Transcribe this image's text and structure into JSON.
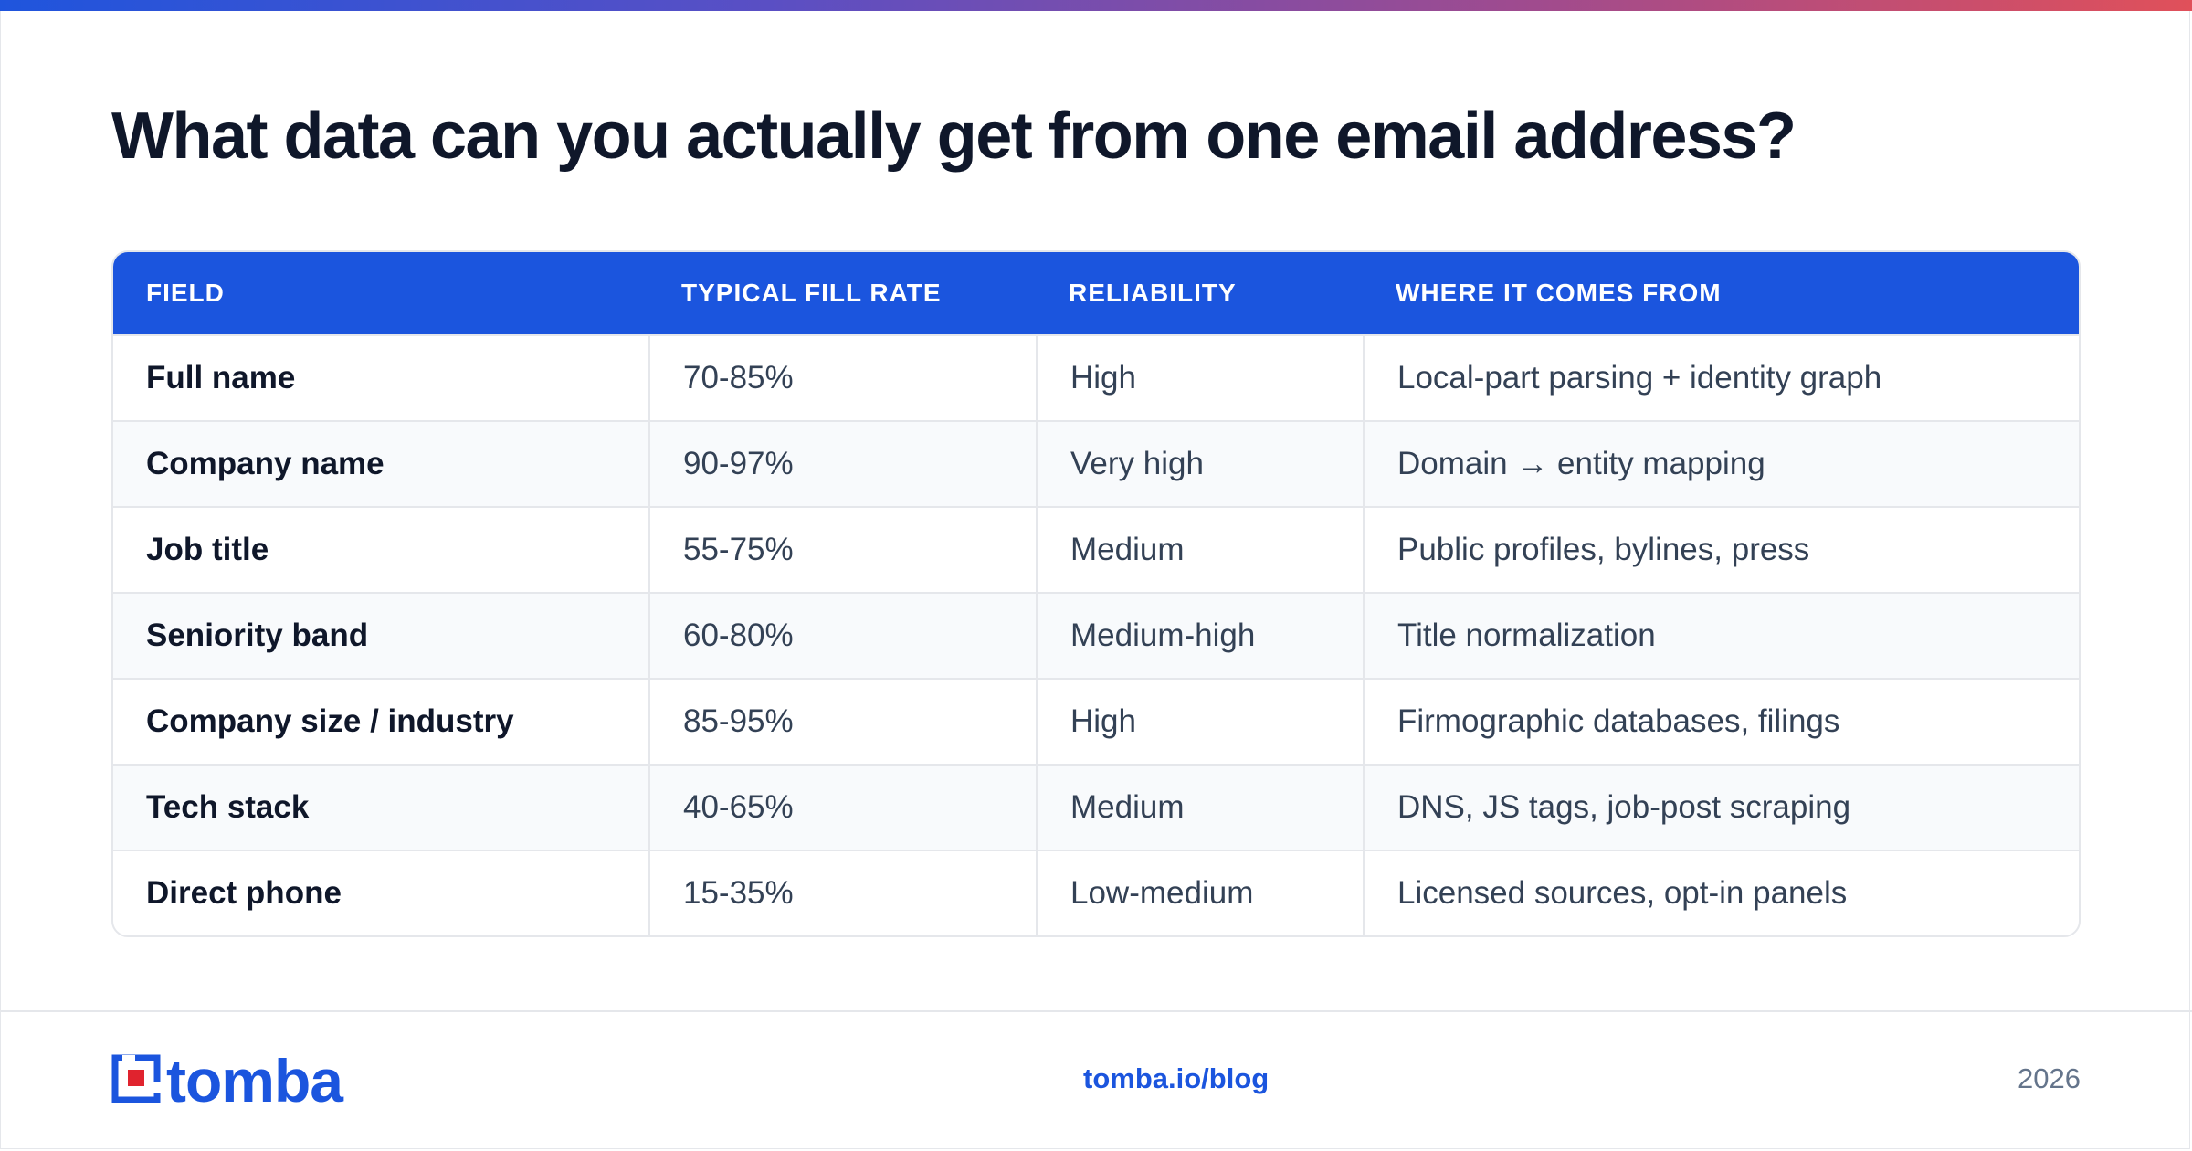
{
  "title": "What data can you actually get from one email address?",
  "table": {
    "headers": [
      "FIELD",
      "TYPICAL FILL RATE",
      "RELIABILITY",
      "WHERE IT COMES FROM"
    ],
    "rows": [
      {
        "field": "Full name",
        "fill_rate": "70-85%",
        "reliability": "High",
        "source": "Local-part parsing + identity graph"
      },
      {
        "field": "Company name",
        "fill_rate": "90-97%",
        "reliability": "Very high",
        "source": "Domain → entity mapping"
      },
      {
        "field": "Job title",
        "fill_rate": "55-75%",
        "reliability": "Medium",
        "source": "Public profiles, bylines, press"
      },
      {
        "field": "Seniority band",
        "fill_rate": "60-80%",
        "reliability": "Medium-high",
        "source": "Title normalization"
      },
      {
        "field": "Company size / industry",
        "fill_rate": "85-95%",
        "reliability": "High",
        "source": "Firmographic databases, filings"
      },
      {
        "field": "Tech stack",
        "fill_rate": "40-65%",
        "reliability": "Medium",
        "source": "DNS, JS tags, job-post scraping"
      },
      {
        "field": "Direct phone",
        "fill_rate": "15-35%",
        "reliability": "Low-medium",
        "source": "Licensed sources, opt-in panels"
      }
    ]
  },
  "footer": {
    "brand": "tomba",
    "link": "tomba.io/blog",
    "year": "2026"
  },
  "colors": {
    "accent": "#1b55de",
    "logo_red": "#e0232e",
    "gradient": [
      "#1f55dd",
      "#e0505a"
    ]
  },
  "icons": {
    "logo_mark": "tomba-logo-icon"
  }
}
